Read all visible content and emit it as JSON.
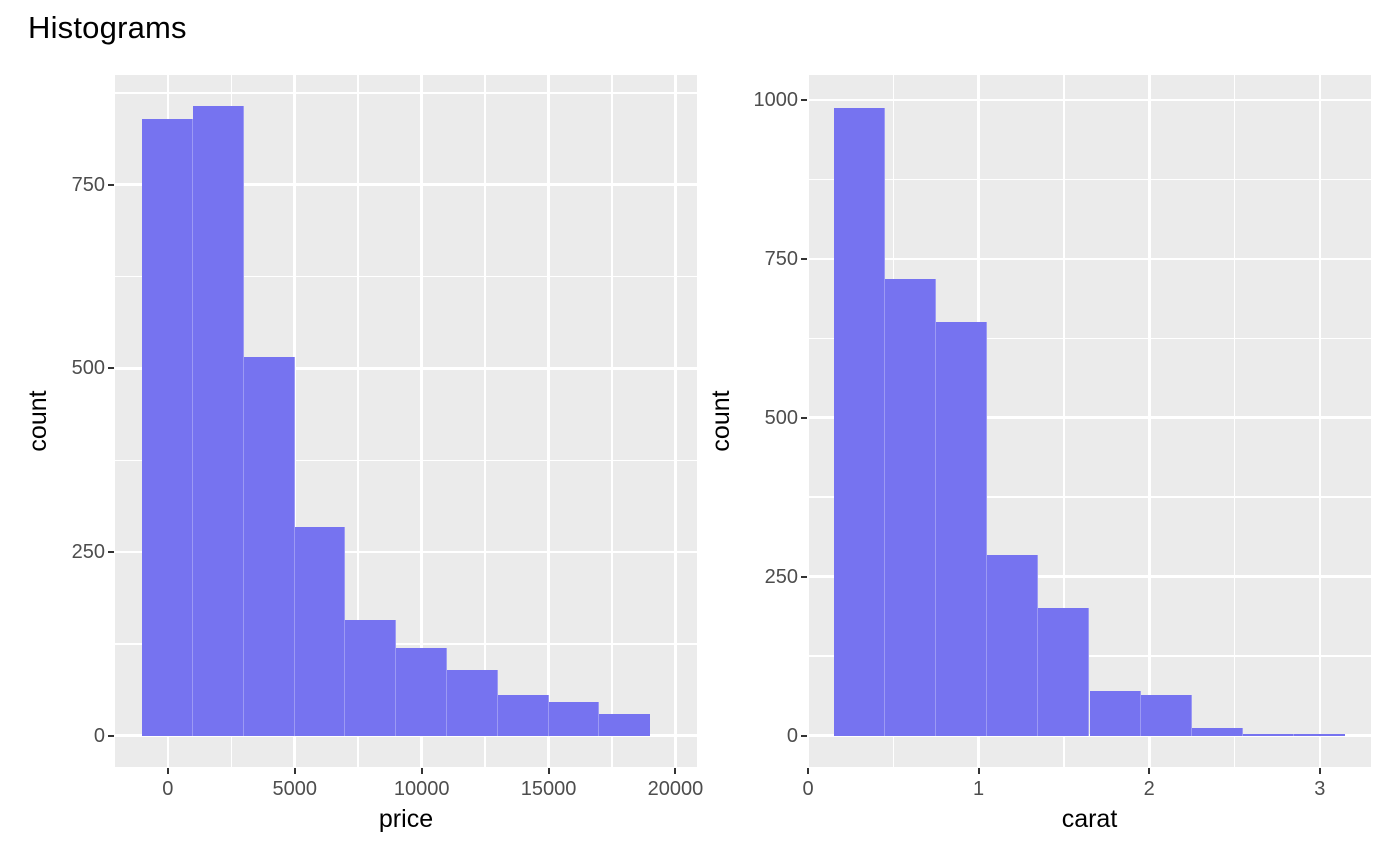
{
  "title": "Histograms",
  "style": {
    "bar_fill": "#7673F0",
    "bar_seam": "rgba(255,255,255,0.28)",
    "panel_bg": "#EBEBEB",
    "grid_color": "#FFFFFF",
    "tick_label_color": "#4D4D4D",
    "tick_mark_color": "#333333",
    "text_color": "#000000"
  },
  "chart_data": [
    {
      "type": "bar",
      "subtype": "histogram",
      "title": "",
      "xlabel": "price",
      "ylabel": "count",
      "bin_start": -1000,
      "bin_width": 2000,
      "bin_edges": [
        -1000,
        1000,
        3000,
        5000,
        7000,
        9000,
        11000,
        13000,
        15000,
        17000,
        19000
      ],
      "values": [
        840,
        857,
        516,
        284,
        158,
        120,
        90,
        55,
        46,
        29
      ],
      "x_ticks": [
        0,
        5000,
        10000,
        15000,
        20000
      ],
      "x_tick_labels": [
        "0",
        "5000",
        "10000",
        "15000",
        "20000"
      ],
      "y_ticks": [
        0,
        250,
        500,
        750
      ],
      "y_tick_labels": [
        "0",
        "250",
        "500",
        "750"
      ],
      "xlim": [
        -2080,
        20847
      ],
      "ylim": [
        -43,
        900
      ],
      "grid": "major-and-minor",
      "legend": "none"
    },
    {
      "type": "bar",
      "subtype": "histogram",
      "title": "",
      "xlabel": "carat",
      "ylabel": "count",
      "bin_start": 0.15,
      "bin_width": 0.3,
      "bin_edges": [
        0.15,
        0.45,
        0.75,
        1.05,
        1.35,
        1.65,
        1.95,
        2.25,
        2.55,
        2.85,
        3.15
      ],
      "values": [
        987,
        719,
        650,
        284,
        200,
        70,
        63,
        12,
        2,
        2
      ],
      "x_ticks": [
        0,
        1,
        2,
        3
      ],
      "x_tick_labels": [
        "0",
        "1",
        "2",
        "3"
      ],
      "y_ticks": [
        0,
        250,
        500,
        750,
        1000
      ],
      "y_tick_labels": [
        "0",
        "250",
        "500",
        "750",
        "1000"
      ],
      "xlim": [
        0,
        3.3
      ],
      "ylim": [
        -50,
        1040
      ],
      "grid": "major-and-minor",
      "legend": "none"
    }
  ]
}
